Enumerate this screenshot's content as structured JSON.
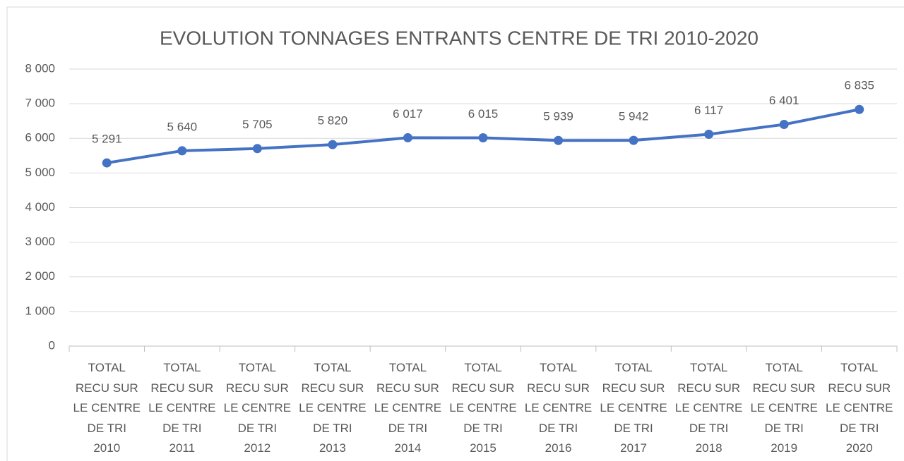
{
  "chart_data": {
    "type": "line",
    "title": "EVOLUTION TONNAGES ENTRANTS CENTRE DE TRI 2010-2020",
    "categories": [
      "TOTAL\nRECU SUR\nLE CENTRE\nDE TRI\n2010",
      "TOTAL\nRECU SUR\nLE CENTRE\nDE TRI\n2011",
      "TOTAL\nRECU SUR\nLE CENTRE\nDE TRI\n2012",
      "TOTAL\nRECU SUR\nLE CENTRE\nDE TRI\n2013",
      "TOTAL\nRECU SUR\nLE CENTRE\nDE TRI\n2014",
      "TOTAL\nRECU SUR\nLE CENTRE\nDE TRI\n2015",
      "TOTAL\nRECU SUR\nLE CENTRE\nDE TRI\n2016",
      "TOTAL\nRECU SUR\nLE CENTRE\nDE TRI\n2017",
      "TOTAL\nRECU SUR\nLE CENTRE\nDE TRI\n2018",
      "TOTAL\nRECU SUR\nLE CENTRE\nDE TRI\n2019",
      "TOTAL\nRECU SUR\nLE CENTRE\nDE TRI\n2020"
    ],
    "values": [
      5291,
      5640,
      5705,
      5820,
      6017,
      6015,
      5939,
      5942,
      6117,
      6401,
      6835
    ],
    "value_labels": [
      "5 291",
      "5 640",
      "5 705",
      "5 820",
      "6 017",
      "6 015",
      "5 939",
      "5 942",
      "6 117",
      "6 401",
      "6 835"
    ],
    "color": "#4472c4",
    "ylim": [
      0,
      8000
    ],
    "yticks": [
      0,
      {
        "value": 1000,
        "label": "1 000"
      },
      {
        "value": 2000,
        "label": "2 000"
      },
      {
        "value": 3000,
        "label": "3 000"
      },
      {
        "value": 4000,
        "label": "4 000"
      },
      {
        "value": 5000,
        "label": "5 000"
      },
      {
        "value": 6000,
        "label": "6 000"
      },
      {
        "value": 7000,
        "label": "7 000"
      },
      {
        "value": 8000,
        "label": "8 000"
      }
    ],
    "grid": true
  }
}
